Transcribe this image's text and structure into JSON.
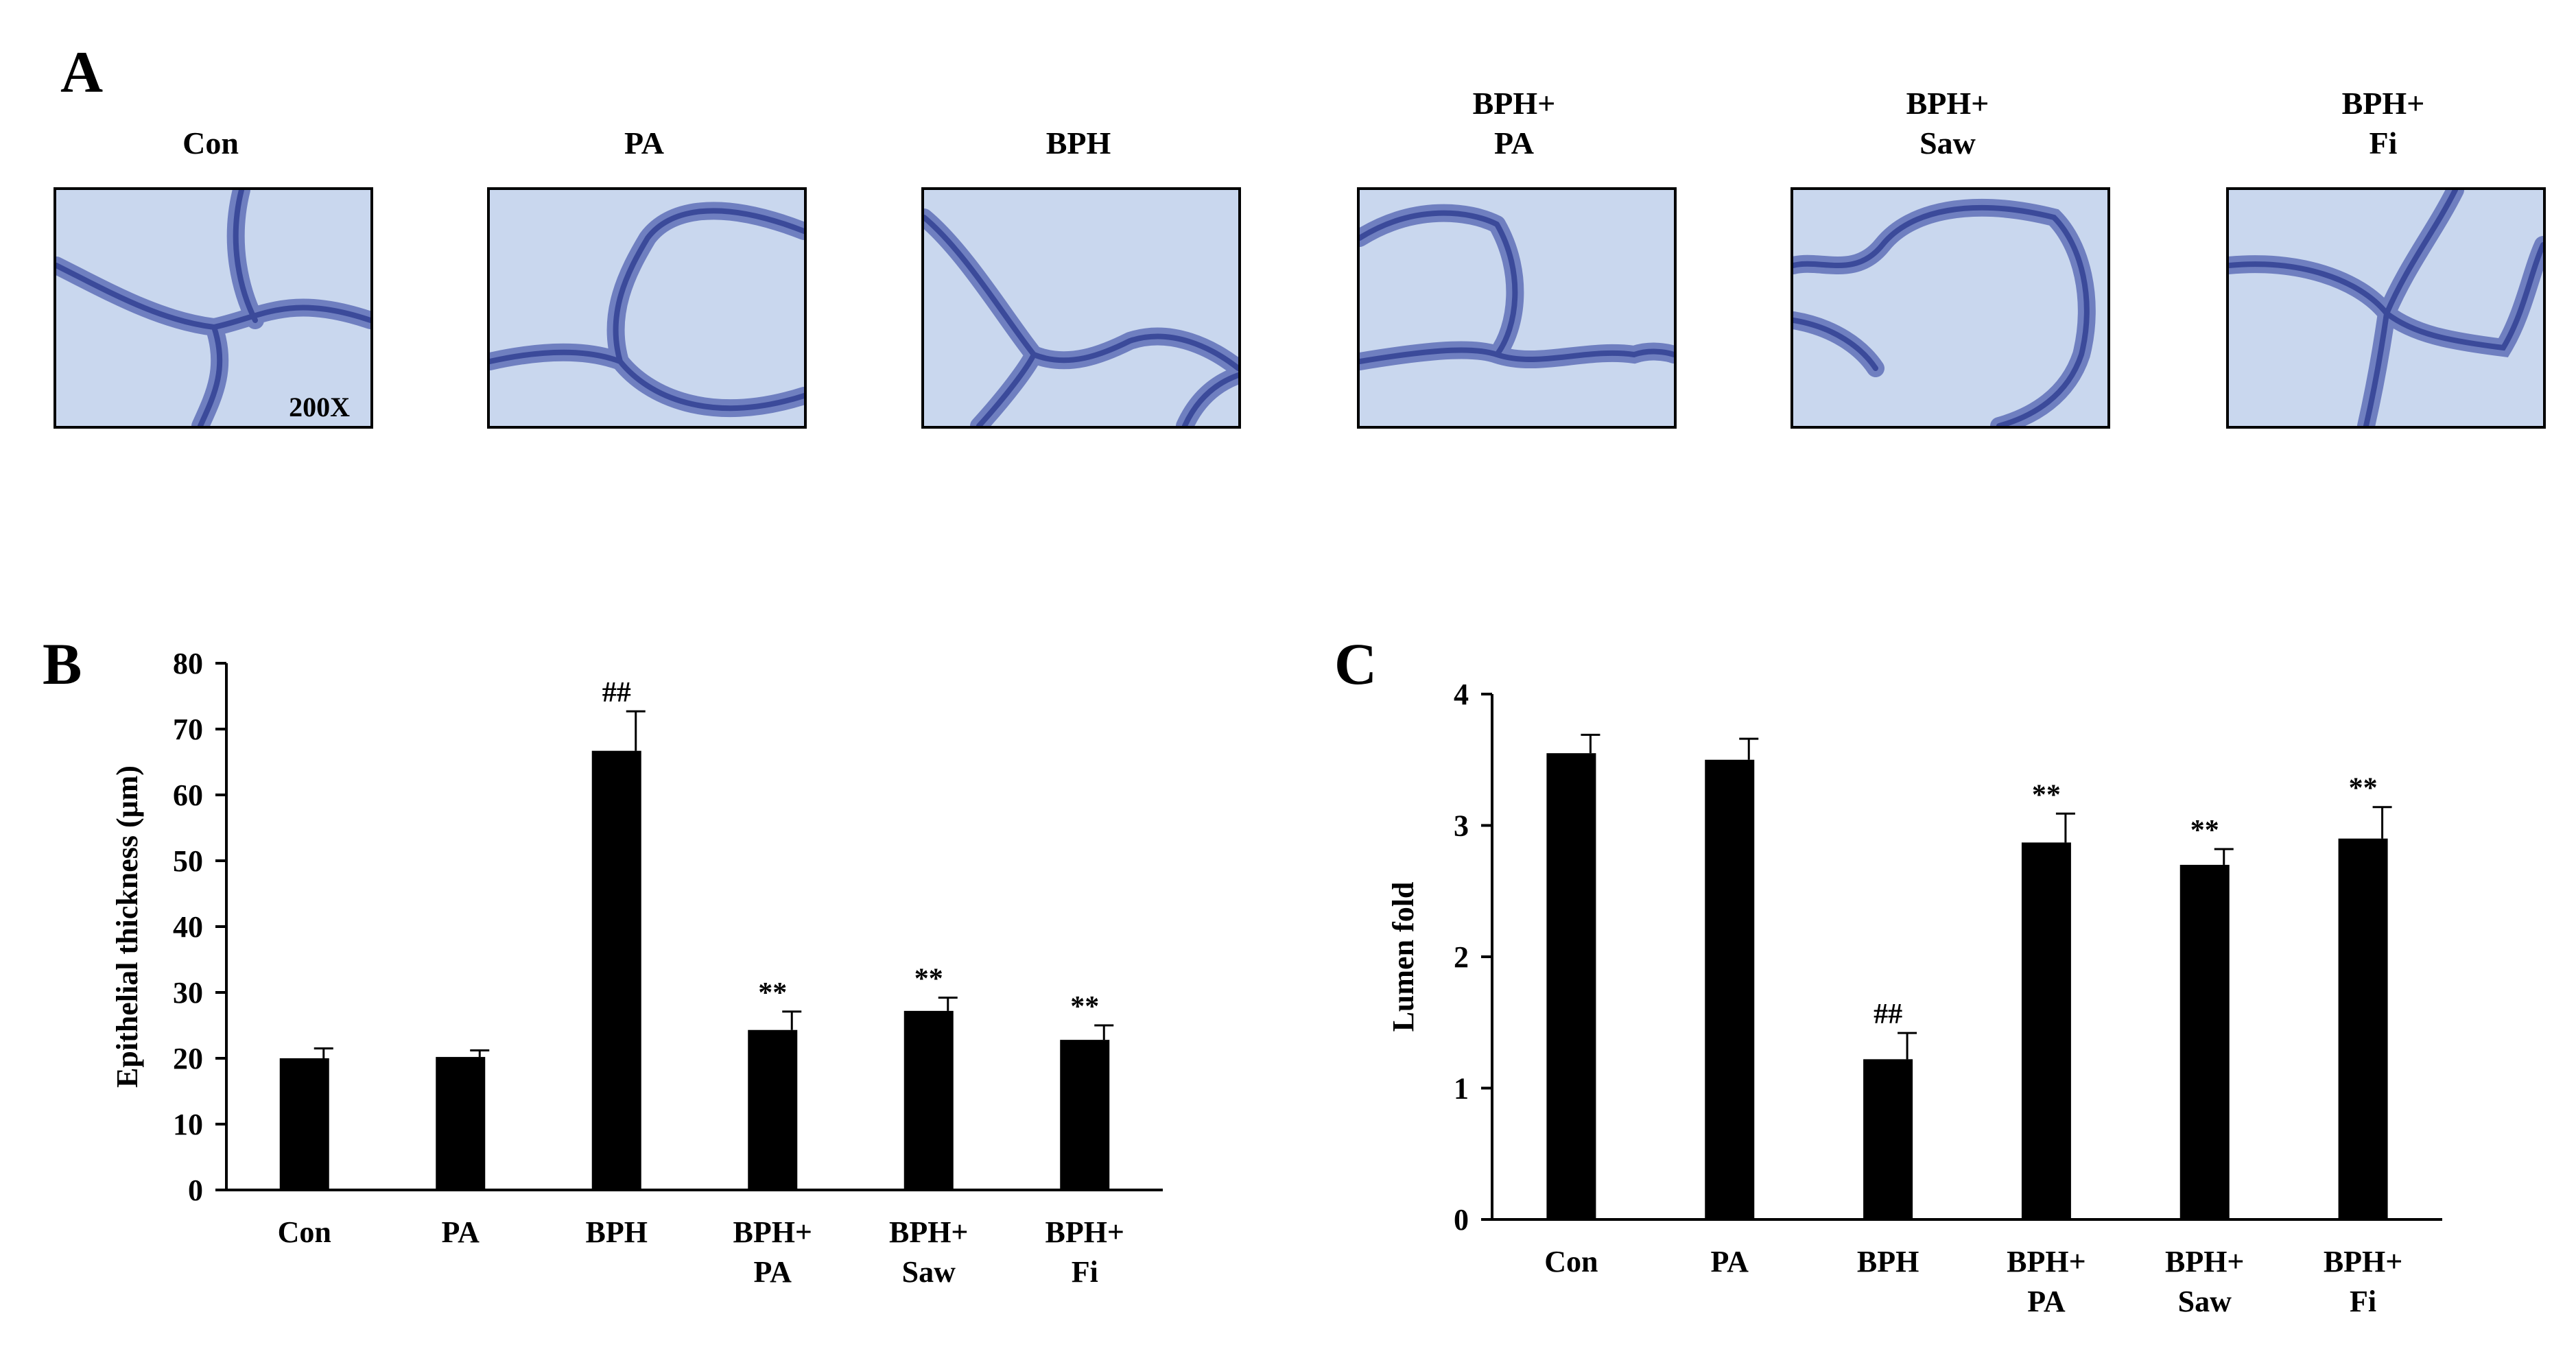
{
  "panel_a": {
    "letter": "A",
    "magnification": "200X",
    "images": [
      {
        "label_lines": [
          "Con"
        ]
      },
      {
        "label_lines": [
          "PA"
        ]
      },
      {
        "label_lines": [
          "BPH"
        ]
      },
      {
        "label_lines": [
          "BPH+",
          "PA"
        ]
      },
      {
        "label_lines": [
          "BPH+",
          "Saw"
        ]
      },
      {
        "label_lines": [
          "BPH+",
          "Fi"
        ]
      }
    ],
    "stain_colors": {
      "background": "#c9d7ee",
      "tissue": "#6f7fc0",
      "tissue_dark": "#3b4a9a"
    }
  },
  "chart_data": [
    {
      "panel": "B",
      "type": "bar",
      "categories": [
        [
          "Con"
        ],
        [
          "PA"
        ],
        [
          "BPH"
        ],
        [
          "BPH+",
          "PA"
        ],
        [
          "BPH+",
          "Saw"
        ],
        [
          "BPH+",
          "Fi"
        ]
      ],
      "values": [
        20,
        20.2,
        66.7,
        24.3,
        27.2,
        22.8
      ],
      "errors": [
        1.5,
        1.0,
        6.0,
        2.8,
        2.0,
        2.2
      ],
      "annotations": [
        "",
        "",
        "##",
        "**",
        "**",
        "**"
      ],
      "title": "",
      "xlabel": "",
      "ylabel": "Epithelial thickness (μm)",
      "ylim": [
        0,
        80
      ],
      "yticks": [
        0,
        10,
        20,
        30,
        40,
        50,
        60,
        70,
        80
      ],
      "grid": false,
      "bar_color": "#000000"
    },
    {
      "panel": "C",
      "type": "bar",
      "categories": [
        [
          "Con"
        ],
        [
          "PA"
        ],
        [
          "BPH"
        ],
        [
          "BPH+",
          "PA"
        ],
        [
          "BPH+",
          "Saw"
        ],
        [
          "BPH+",
          "Fi"
        ]
      ],
      "values": [
        3.55,
        3.5,
        1.22,
        2.87,
        2.7,
        2.9
      ],
      "errors": [
        0.14,
        0.16,
        0.2,
        0.22,
        0.12,
        0.24
      ],
      "annotations": [
        "",
        "",
        "##",
        "**",
        "**",
        "**"
      ],
      "title": "",
      "xlabel": "",
      "ylabel": "Lumen fold",
      "ylim": [
        0,
        4
      ],
      "yticks": [
        0,
        1,
        2,
        3,
        4
      ],
      "grid": false,
      "bar_color": "#000000"
    }
  ]
}
